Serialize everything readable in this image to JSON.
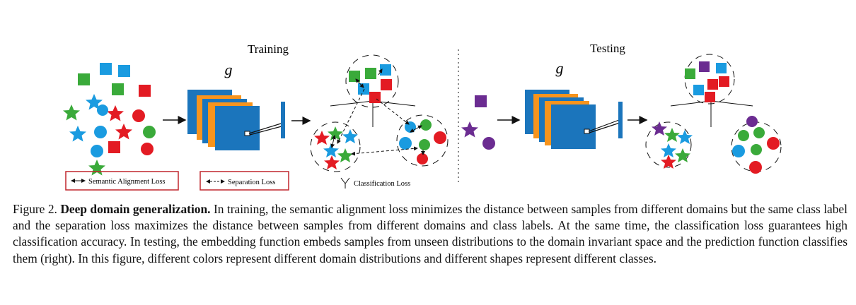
{
  "figure": {
    "training_label": "Training",
    "testing_label": "Testing",
    "g_symbol_training": "g",
    "g_symbol_testing": "g",
    "legend": {
      "semantic_alignment": "Semantic Alignment Loss",
      "separation": "Separation Loss",
      "classification": "Classification Loss"
    },
    "colors": {
      "blue": "#1a9be0",
      "green": "#3aaa3a",
      "red": "#e31b23",
      "orange": "#f7941d",
      "purple": "#6b2c91",
      "dark_blue": "#1b75bc",
      "legend_border": "#c1272d"
    }
  },
  "caption": {
    "prefix": "Figure 2.",
    "title": "Deep domain generalization.",
    "body": "In training, the semantic alignment loss minimizes the distance between samples from different domains but the same class label and the separation loss maximizes the distance between samples from different domains and class labels. At the same time, the classification loss guarantees high classification accuracy. In testing, the embedding function embeds samples from unseen distributions to the domain invariant space and the prediction function classifies them (right). In this figure, different colors represent different domain distributions and different shapes represent different classes."
  }
}
